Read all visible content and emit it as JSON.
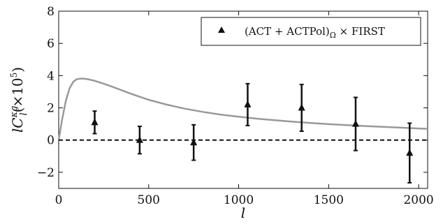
{
  "chart_data": {
    "type": "scatter",
    "xlabel": "l",
    "ylabel_main": "lC",
    "ylabel_sub": "l",
    "ylabel_sup": "κg",
    "ylabel_suffix": "(×10",
    "ylabel_exp": "5",
    "ylabel_close": ")",
    "xlim": [
      0,
      2050
    ],
    "ylim": [
      -3,
      8
    ],
    "x_ticks": [
      0,
      500,
      1000,
      1500,
      2000
    ],
    "y_ticks": [
      -2,
      0,
      2,
      4,
      6,
      8
    ],
    "x_tick_labels": [
      "0",
      "500",
      "1000",
      "1500",
      "2000"
    ],
    "y_tick_labels": [
      "−2",
      "0",
      "2",
      "4",
      "6",
      "8"
    ],
    "grid": false,
    "legend_position": "top-right",
    "legend_label": "(ACT + ACTPol)",
    "legend_label_sub": "Ω",
    "legend_label_rest": " × FIRST",
    "series": [
      {
        "name": "(ACT + ACTPol)Ω × FIRST",
        "marker": "triangle",
        "color": "#111111",
        "x": [
          200,
          450,
          750,
          1050,
          1350,
          1650,
          1950
        ],
        "y": [
          1.1,
          0.0,
          -0.15,
          2.2,
          2.0,
          1.0,
          -0.8
        ],
        "yerr": [
          0.7,
          0.85,
          1.1,
          1.3,
          1.45,
          1.65,
          1.85
        ]
      },
      {
        "marker": "none",
        "color": "#999999",
        "x": [
          0,
          20,
          40,
          60,
          80,
          100,
          130,
          160,
          200,
          250,
          300,
          400,
          500,
          600,
          700,
          800,
          900,
          1000,
          1100,
          1200,
          1300,
          1400,
          1500,
          1600,
          1700,
          1800,
          1900,
          2000,
          2050
        ],
        "y": [
          0.0,
          1.35,
          2.45,
          3.2,
          3.6,
          3.78,
          3.82,
          3.78,
          3.68,
          3.5,
          3.3,
          2.88,
          2.5,
          2.2,
          1.95,
          1.75,
          1.58,
          1.45,
          1.33,
          1.23,
          1.14,
          1.06,
          0.99,
          0.93,
          0.87,
          0.82,
          0.77,
          0.72,
          0.7
        ]
      }
    ],
    "reference_line": {
      "y": 0,
      "style": "dashed",
      "color": "#111111"
    }
  }
}
